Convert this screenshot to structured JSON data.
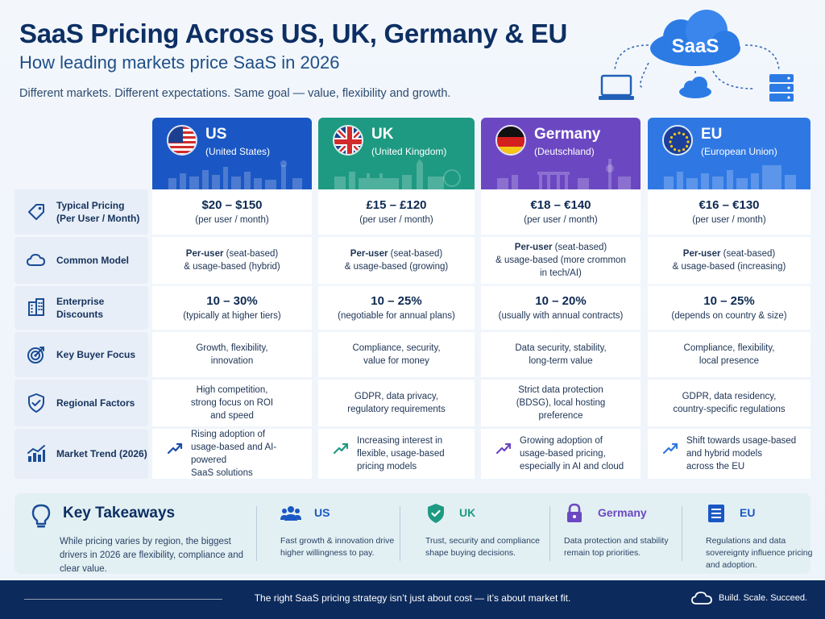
{
  "header": {
    "title": "SaaS Pricing Across US, UK, Germany & EU",
    "subtitle": "How leading markets price SaaS in 2026",
    "tagline": "Different markets. Different expectations. Same goal — value, flexibility and growth."
  },
  "cloud_badge": "SaaS",
  "columns": [
    {
      "name": "US",
      "sub": "(United States)",
      "color": "#1a57c4",
      "flag": "us-flag-icon"
    },
    {
      "name": "UK",
      "sub": "(United Kingdom)",
      "color": "#1e9a82",
      "flag": "uk-flag-icon"
    },
    {
      "name": "Germany",
      "sub": "(Deutschland)",
      "color": "#6b48c2",
      "flag": "germany-flag-icon"
    },
    {
      "name": "EU",
      "sub": "(European Union)",
      "color": "#2f78e3",
      "flag": "eu-flag-icon"
    }
  ],
  "rows": {
    "pricing": {
      "label_1": "Typical Pricing",
      "label_2": "(Per User / Month)",
      "icon": "price-tag-icon",
      "cells": [
        {
          "main": "$20 – $150",
          "note": "(per user / month)"
        },
        {
          "main": "£15 – £120",
          "note": "(per user / month)"
        },
        {
          "main": "€18 – €140",
          "note": "(per user / month)"
        },
        {
          "main": "€16 – €130",
          "note": "(per user / month)"
        }
      ]
    },
    "model": {
      "label": "Common Model",
      "icon": "cloud-icon",
      "cells": [
        {
          "bold": "Per-user",
          "rest": " (seat-based)",
          "line2": "& usage-based (hybrid)",
          "line3": ""
        },
        {
          "bold": "Per-user",
          "rest": " (seat-based)",
          "line2": "& usage-based (growing)",
          "line3": ""
        },
        {
          "bold": "Per-user",
          "rest": " (seat-based)",
          "line2": "& usage-based (more crommon",
          "line3": "in tech/AI)"
        },
        {
          "bold": "Per-user",
          "rest": " (seat-based)",
          "line2": "& usage-based (increasing)",
          "line3": ""
        }
      ]
    },
    "discounts": {
      "label": "Enterprise Discounts",
      "icon": "building-icon",
      "cells": [
        {
          "main": "10 – 30%",
          "note": "(typically at higher tiers)"
        },
        {
          "main": "10 – 25%",
          "note": "(negotiable for annual plans)"
        },
        {
          "main": "10 – 20%",
          "note": "(usually with annual contracts)"
        },
        {
          "main": "10 – 25%",
          "note": "(depends on country & size)"
        }
      ]
    },
    "focus": {
      "label": "Key Buyer Focus",
      "icon": "target-icon",
      "cells": [
        {
          "l1": "Growth, flexibility,",
          "l2": "innovation"
        },
        {
          "l1": "Compliance, security,",
          "l2": "value for money"
        },
        {
          "l1": "Data security, stability,",
          "l2": "long-term value"
        },
        {
          "l1": "Compliance, flexibility,",
          "l2": "local presence"
        }
      ]
    },
    "factors": {
      "label": "Regional Factors",
      "icon": "shield-check-icon",
      "cells": [
        {
          "l1": "High competition,",
          "l2": "strong focus on ROI",
          "l3": "and speed"
        },
        {
          "l1": "GDPR, data privacy,",
          "l2": "regulatory requirements",
          "l3": ""
        },
        {
          "l1": "Strict data protection",
          "l2": "(BDSG), local hosting",
          "l3": "preference"
        },
        {
          "l1": "GDPR, data residency,",
          "l2": "country-specific regulations",
          "l3": ""
        }
      ]
    },
    "trend": {
      "label": "Market Trend (2026)",
      "icon": "bar-chart-icon",
      "cells": [
        {
          "l1": "Rising adoption of",
          "l2": "usage-based and AI-powered",
          "l3": "SaaS solutions"
        },
        {
          "l1": "Increasing interest in",
          "l2": "flexible, usage-based",
          "l3": "pricing models"
        },
        {
          "l1": "Growing adoption of",
          "l2": "usage-based pricing,",
          "l3": "especially in AI and cloud"
        },
        {
          "l1": "Shift towards usage-based",
          "l2": "and hybrid models",
          "l3": "across the EU"
        }
      ]
    }
  },
  "takeaways": {
    "title": "Key Takeaways",
    "text": "While pricing varies by region, the biggest drivers in 2026 are flexibility, compliance and clear value.",
    "items": [
      {
        "name": "US",
        "desc": "Fast growth & innovation drive higher willingness to pay.",
        "icon": "people-icon",
        "color": "#1a57c4"
      },
      {
        "name": "UK",
        "desc": "Trust, security and compliance shape buying decisions.",
        "icon": "shield-icon",
        "color": "#1e9a82"
      },
      {
        "name": "Germany",
        "desc": "Data protection and stability remain top priorities.",
        "icon": "lock-icon",
        "color": "#6b48c2"
      },
      {
        "name": "EU",
        "desc": "Regulations and data sovereignty influence pricing and adoption.",
        "icon": "document-icon",
        "color": "#1a57c4"
      }
    ]
  },
  "footer": {
    "message": "The right SaaS pricing strategy isn’t just about cost — it’s about market fit.",
    "brand": "Build. Scale. Succeed."
  }
}
